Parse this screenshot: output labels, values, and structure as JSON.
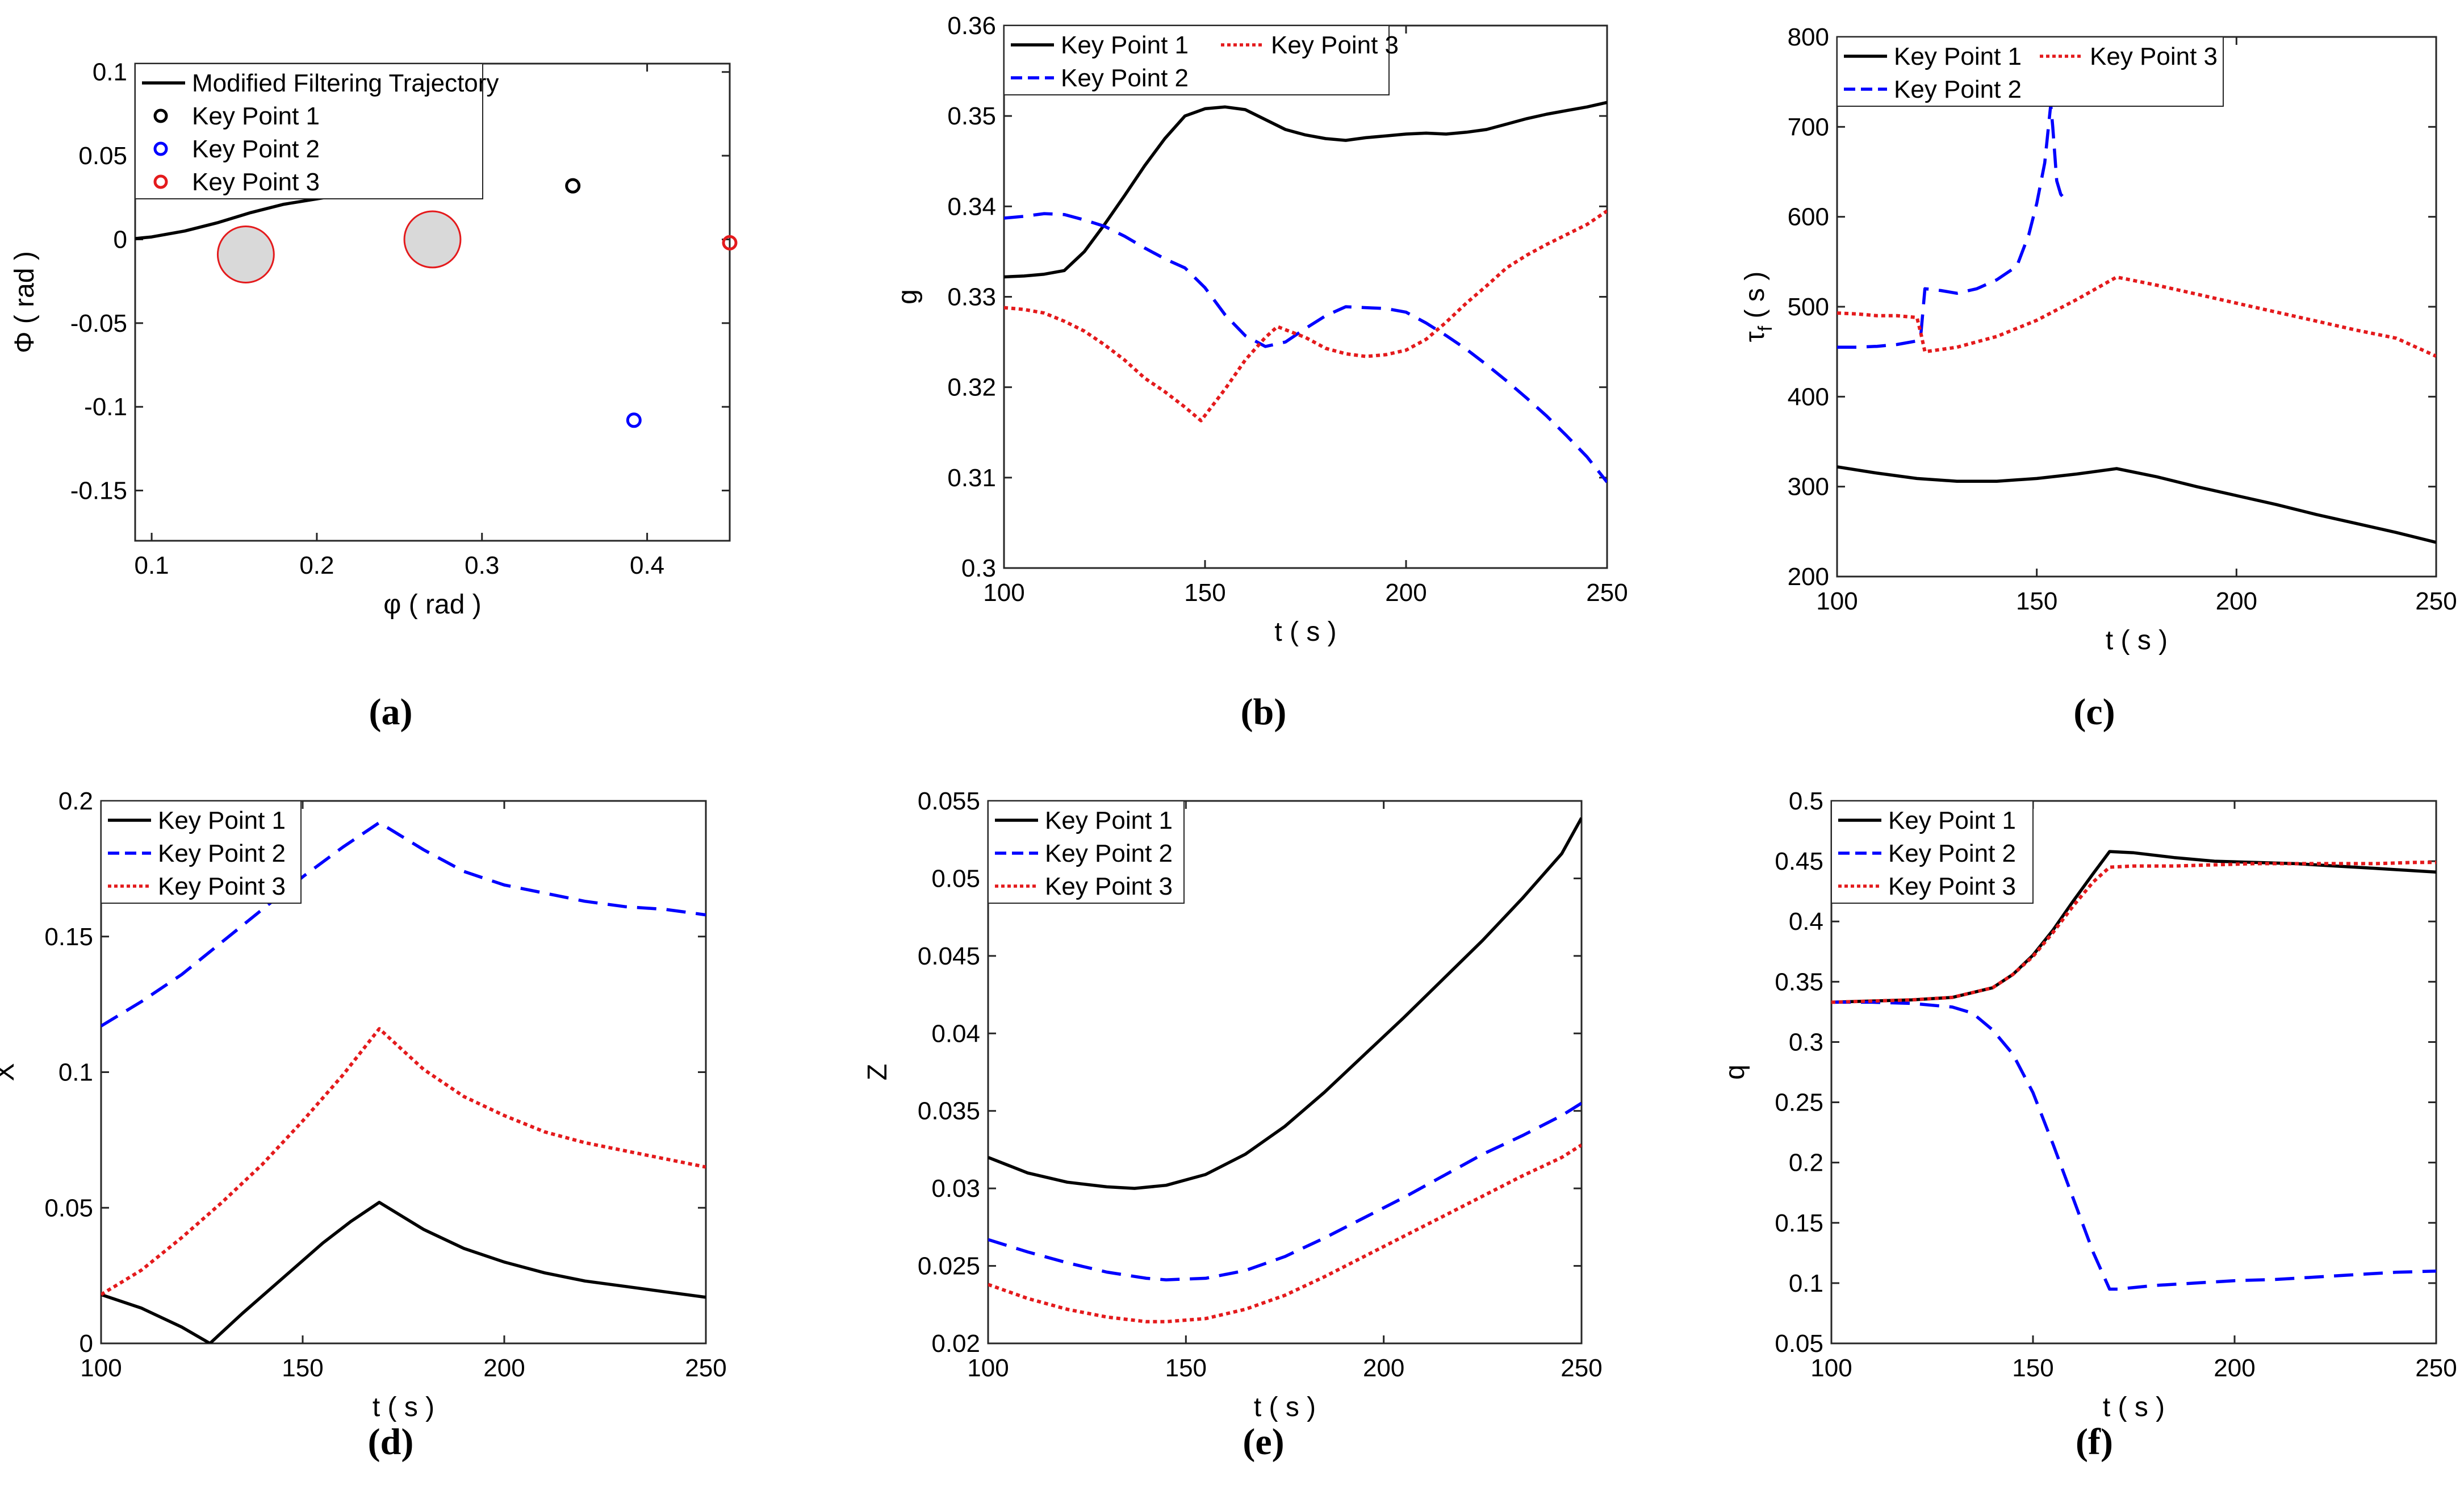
{
  "chart_data": [
    {
      "id": "a",
      "type": "line+scatter",
      "caption": "(a)",
      "xlabel": "φ ( rad )",
      "ylabel": "Φ ( rad )",
      "xlim": [
        0.09,
        0.45
      ],
      "ylim": [
        -0.18,
        0.105
      ],
      "xticks": [
        0.1,
        0.2,
        0.3,
        0.4
      ],
      "xtick_labels": [
        "0.1",
        "0.2",
        "0.3",
        "0.4"
      ],
      "yticks": [
        0.1,
        0.05,
        0,
        -0.05,
        -0.1,
        -0.15
      ],
      "ytick_labels": [
        "0.1",
        "0.05",
        "0",
        "-0.05",
        "-0.1",
        "-0.15"
      ],
      "legend": [
        "Modified Filtering Trajectory",
        "Key Point 1",
        "Key Point 2",
        "Key Point 3"
      ],
      "series": [
        {
          "name": "Modified Filtering Trajectory",
          "color": "#000000",
          "style": "solid",
          "x": [
            0.09,
            0.1,
            0.12,
            0.14,
            0.16,
            0.18,
            0.205
          ],
          "y": [
            0.0005,
            0.0015,
            0.005,
            0.01,
            0.016,
            0.021,
            0.025
          ]
        },
        {
          "name": "Key Point 1",
          "color": "#000000",
          "style": "marker",
          "x": [
            0.355
          ],
          "y": [
            0.032
          ]
        },
        {
          "name": "Key Point 2",
          "color": "#0000ff",
          "style": "marker",
          "x": [
            0.392
          ],
          "y": [
            -0.108
          ]
        },
        {
          "name": "Key Point 3",
          "color": "#e41a1c",
          "style": "marker",
          "x": [
            0.45
          ],
          "y": [
            -0.002
          ]
        }
      ],
      "obstacles": [
        {
          "x": 0.157,
          "y": -0.009,
          "r": 0.017
        },
        {
          "x": 0.27,
          "y": 0.0,
          "r": 0.017
        }
      ]
    },
    {
      "id": "b",
      "type": "line",
      "caption": "(b)",
      "xlabel": "t ( s )",
      "ylabel": "g",
      "xlim": [
        100,
        250
      ],
      "ylim": [
        0.3,
        0.36
      ],
      "xticks": [
        100,
        150,
        200,
        250
      ],
      "xtick_labels": [
        "100",
        "150",
        "200",
        "250"
      ],
      "yticks": [
        0.3,
        0.31,
        0.32,
        0.33,
        0.34,
        0.35,
        0.36
      ],
      "ytick_labels": [
        "0.3",
        "0.31",
        "0.32",
        "0.33",
        "0.34",
        "0.35",
        "0.36"
      ],
      "legend": [
        "Key Point 1",
        "Key Point 3",
        "Key Point 2"
      ],
      "series": [
        {
          "name": "Key Point 1",
          "color": "#000000",
          "style": "solid",
          "x": [
            100,
            105,
            110,
            115,
            120,
            125,
            130,
            135,
            140,
            145,
            150,
            155,
            160,
            165,
            170,
            175,
            180,
            185,
            190,
            195,
            200,
            205,
            210,
            215,
            220,
            225,
            230,
            235,
            240,
            245,
            250
          ],
          "y": [
            0.3322,
            0.3323,
            0.3325,
            0.3329,
            0.335,
            0.338,
            0.3412,
            0.3445,
            0.3475,
            0.35,
            0.3508,
            0.351,
            0.3507,
            0.3496,
            0.3485,
            0.3479,
            0.3475,
            0.3473,
            0.3476,
            0.3478,
            0.348,
            0.3481,
            0.348,
            0.3482,
            0.3485,
            0.3491,
            0.3497,
            0.3502,
            0.3506,
            0.351,
            0.3515
          ]
        },
        {
          "name": "Key Point 2",
          "color": "#0000ff",
          "style": "dashed",
          "x": [
            100,
            105,
            110,
            115,
            120,
            125,
            130,
            135,
            140,
            145,
            150,
            155,
            160,
            165,
            170,
            175,
            180,
            185,
            190,
            195,
            200,
            205,
            210,
            215,
            220,
            225,
            230,
            235,
            240,
            245,
            250
          ],
          "y": [
            0.3387,
            0.3389,
            0.3392,
            0.3391,
            0.3385,
            0.3378,
            0.3367,
            0.3354,
            0.3342,
            0.3332,
            0.331,
            0.328,
            0.3257,
            0.3245,
            0.325,
            0.3265,
            0.3279,
            0.3289,
            0.3288,
            0.3287,
            0.3283,
            0.3271,
            0.3257,
            0.3242,
            0.3225,
            0.3207,
            0.3188,
            0.3168,
            0.3146,
            0.3123,
            0.3095
          ]
        },
        {
          "name": "Key Point 3",
          "color": "#e41a1c",
          "style": "dotted",
          "x": [
            100,
            105,
            110,
            115,
            120,
            125,
            130,
            135,
            140,
            145,
            149,
            155,
            160,
            165,
            168,
            175,
            180,
            185,
            190,
            195,
            200,
            205,
            210,
            215,
            220,
            225,
            230,
            235,
            240,
            245,
            250
          ],
          "y": [
            0.3288,
            0.3286,
            0.3282,
            0.3273,
            0.3262,
            0.3247,
            0.323,
            0.321,
            0.3195,
            0.3178,
            0.3163,
            0.3198,
            0.323,
            0.3255,
            0.3267,
            0.3255,
            0.3243,
            0.3237,
            0.3234,
            0.3236,
            0.3241,
            0.3253,
            0.3272,
            0.3293,
            0.3312,
            0.3332,
            0.3346,
            0.3358,
            0.3369,
            0.338,
            0.3395
          ]
        }
      ]
    },
    {
      "id": "c",
      "type": "line",
      "caption": "(c)",
      "xlabel": "t ( s )",
      "ylabel": "τ",
      "ylabel_sub": "f",
      "ylabel_unit": " ( s )",
      "xlim": [
        100,
        250
      ],
      "ylim": [
        200,
        800
      ],
      "xticks": [
        100,
        150,
        200,
        250
      ],
      "xtick_labels": [
        "100",
        "150",
        "200",
        "250"
      ],
      "yticks": [
        200,
        300,
        400,
        500,
        600,
        700,
        800
      ],
      "ytick_labels": [
        "200",
        "300",
        "400",
        "500",
        "600",
        "700",
        "800"
      ],
      "legend": [
        "Key Point 1",
        "Key Point 3",
        "Key Point 2"
      ],
      "series": [
        {
          "name": "Key Point 1",
          "color": "#000000",
          "style": "solid",
          "x": [
            100,
            110,
            120,
            130,
            140,
            150,
            160,
            170,
            180,
            190,
            200,
            210,
            220,
            230,
            240,
            250
          ],
          "y": [
            322,
            315,
            309,
            306,
            306,
            309,
            314,
            320,
            311,
            300,
            290,
            280,
            269,
            259,
            249,
            238
          ]
        },
        {
          "name": "Key Point 2",
          "color": "#0000ff",
          "style": "dashed",
          "x": [
            100,
            105,
            110,
            115,
            120,
            121,
            122,
            126,
            130,
            135,
            140,
            145,
            148,
            150,
            152,
            153.5,
            154,
            155,
            156,
            157
          ],
          "y": [
            455,
            455,
            456,
            458,
            462,
            470,
            520,
            518,
            515,
            520,
            530,
            545,
            580,
            615,
            660,
            725,
            700,
            640,
            625,
            620
          ]
        },
        {
          "name": "Key Point 3",
          "color": "#e41a1c",
          "style": "dotted",
          "x": [
            100,
            105,
            110,
            115,
            120,
            121,
            122,
            130,
            140,
            150,
            160,
            170,
            180,
            190,
            200,
            210,
            220,
            230,
            240,
            250
          ],
          "y": [
            493,
            492,
            490,
            490,
            488,
            470,
            450,
            455,
            467,
            485,
            508,
            533,
            524,
            514,
            504,
            494,
            484,
            474,
            465,
            445
          ]
        }
      ]
    },
    {
      "id": "d",
      "type": "line",
      "caption": "(d)",
      "xlabel": "t ( s )",
      "ylabel": "X",
      "xlim": [
        100,
        250
      ],
      "ylim": [
        0,
        0.2
      ],
      "xticks": [
        100,
        150,
        200,
        250
      ],
      "xtick_labels": [
        "100",
        "150",
        "200",
        "250"
      ],
      "yticks": [
        0,
        0.05,
        0.1,
        0.15,
        0.2
      ],
      "ytick_labels": [
        "0",
        "0.05",
        "0.1",
        "0.15",
        "0.2"
      ],
      "legend": [
        "Key Point 1",
        "Key Point 2",
        "Key Point 3"
      ],
      "series": [
        {
          "name": "Key Point 1",
          "color": "#000000",
          "style": "solid",
          "x": [
            100,
            110,
            120,
            127,
            135,
            145,
            155,
            162,
            169,
            180,
            190,
            200,
            210,
            220,
            230,
            240,
            250
          ],
          "y": [
            0.018,
            0.013,
            0.006,
            0.0,
            0.011,
            0.024,
            0.037,
            0.045,
            0.052,
            0.042,
            0.035,
            0.03,
            0.026,
            0.023,
            0.021,
            0.019,
            0.017
          ]
        },
        {
          "name": "Key Point 2",
          "color": "#0000ff",
          "style": "dashed",
          "x": [
            100,
            110,
            120,
            130,
            140,
            150,
            160,
            169,
            180,
            190,
            200,
            210,
            220,
            230,
            240,
            250
          ],
          "y": [
            0.117,
            0.126,
            0.136,
            0.148,
            0.16,
            0.172,
            0.183,
            0.192,
            0.182,
            0.174,
            0.169,
            0.166,
            0.163,
            0.161,
            0.16,
            0.158
          ]
        },
        {
          "name": "Key Point 3",
          "color": "#e41a1c",
          "style": "dotted",
          "x": [
            100,
            110,
            120,
            130,
            140,
            150,
            160,
            169,
            180,
            190,
            200,
            210,
            220,
            230,
            240,
            250
          ],
          "y": [
            0.018,
            0.027,
            0.039,
            0.052,
            0.066,
            0.082,
            0.099,
            0.116,
            0.101,
            0.091,
            0.084,
            0.078,
            0.074,
            0.071,
            0.068,
            0.065
          ]
        }
      ]
    },
    {
      "id": "e",
      "type": "line",
      "caption": "(e)",
      "xlabel": "t ( s )",
      "ylabel": "Z",
      "xlim": [
        100,
        250
      ],
      "ylim": [
        0.02,
        0.055
      ],
      "xticks": [
        100,
        150,
        200,
        250
      ],
      "xtick_labels": [
        "100",
        "150",
        "200",
        "250"
      ],
      "yticks": [
        0.02,
        0.025,
        0.03,
        0.035,
        0.04,
        0.045,
        0.05,
        0.055
      ],
      "ytick_labels": [
        "0.02",
        "0.025",
        "0.03",
        "0.035",
        "0.04",
        "0.045",
        "0.05",
        "0.055"
      ],
      "legend": [
        "Key Point 1",
        "Key Point 2",
        "Key Point 3"
      ],
      "series": [
        {
          "name": "Key Point 1",
          "color": "#000000",
          "style": "solid",
          "x": [
            100,
            110,
            120,
            130,
            137,
            145,
            155,
            165,
            175,
            185,
            195,
            205,
            215,
            225,
            235,
            245,
            250
          ],
          "y": [
            0.032,
            0.031,
            0.0304,
            0.0301,
            0.03,
            0.0302,
            0.0309,
            0.0322,
            0.034,
            0.0362,
            0.0386,
            0.041,
            0.0435,
            0.046,
            0.0487,
            0.0516,
            0.0539
          ]
        },
        {
          "name": "Key Point 2",
          "color": "#0000ff",
          "style": "dashed",
          "x": [
            100,
            110,
            120,
            130,
            140,
            145,
            155,
            165,
            175,
            185,
            195,
            205,
            215,
            225,
            235,
            245,
            250
          ],
          "y": [
            0.0267,
            0.0259,
            0.0252,
            0.0246,
            0.0242,
            0.0241,
            0.0242,
            0.0247,
            0.0256,
            0.0268,
            0.0281,
            0.0294,
            0.0308,
            0.0322,
            0.0334,
            0.0347,
            0.0355
          ]
        },
        {
          "name": "Key Point 3",
          "color": "#e41a1c",
          "style": "dotted",
          "x": [
            100,
            110,
            120,
            130,
            140,
            145,
            155,
            165,
            175,
            185,
            195,
            205,
            215,
            225,
            235,
            245,
            250
          ],
          "y": [
            0.0238,
            0.0229,
            0.0222,
            0.0217,
            0.0214,
            0.0214,
            0.0216,
            0.0222,
            0.0231,
            0.0243,
            0.0256,
            0.0269,
            0.0282,
            0.0295,
            0.0308,
            0.032,
            0.0328
          ]
        }
      ]
    },
    {
      "id": "f",
      "type": "line",
      "caption": "(f)",
      "xlabel": "t ( s )",
      "ylabel": "q",
      "xlim": [
        100,
        250
      ],
      "ylim": [
        0.05,
        0.5
      ],
      "xticks": [
        100,
        150,
        200,
        250
      ],
      "xtick_labels": [
        "100",
        "150",
        "200",
        "250"
      ],
      "yticks": [
        0.05,
        0.1,
        0.15,
        0.2,
        0.25,
        0.3,
        0.35,
        0.4,
        0.45,
        0.5
      ],
      "ytick_labels": [
        "0.05",
        "0.1",
        "0.15",
        "0.2",
        "0.25",
        "0.3",
        "0.35",
        "0.4",
        "0.45",
        "0.5"
      ],
      "legend": [
        "Key Point 1",
        "Key Point 2",
        "Key  Point 3"
      ],
      "series": [
        {
          "name": "Key Point 1",
          "color": "#000000",
          "style": "solid",
          "x": [
            100,
            110,
            120,
            130,
            140,
            145,
            150,
            155,
            160,
            165,
            169,
            175,
            185,
            195,
            205,
            215,
            225,
            235,
            245,
            250
          ],
          "y": [
            0.333,
            0.334,
            0.335,
            0.337,
            0.345,
            0.356,
            0.372,
            0.393,
            0.417,
            0.44,
            0.458,
            0.457,
            0.453,
            0.45,
            0.449,
            0.448,
            0.446,
            0.444,
            0.442,
            0.441
          ]
        },
        {
          "name": "Key Point 2",
          "color": "#0000ff",
          "style": "dashed",
          "x": [
            100,
            110,
            120,
            130,
            135,
            140,
            145,
            150,
            155,
            160,
            165,
            169,
            171,
            180,
            190,
            200,
            210,
            220,
            230,
            240,
            250
          ],
          "y": [
            0.333,
            0.333,
            0.332,
            0.329,
            0.324,
            0.31,
            0.29,
            0.258,
            0.215,
            0.17,
            0.125,
            0.095,
            0.095,
            0.098,
            0.1,
            0.102,
            0.103,
            0.105,
            0.107,
            0.109,
            0.11
          ]
        },
        {
          "name": "Key  Point 3",
          "color": "#e41a1c",
          "style": "dotted",
          "x": [
            100,
            110,
            120,
            130,
            140,
            145,
            150,
            155,
            160,
            165,
            169,
            175,
            185,
            195,
            205,
            215,
            225,
            235,
            245,
            250
          ],
          "y": [
            0.333,
            0.334,
            0.335,
            0.337,
            0.345,
            0.356,
            0.371,
            0.391,
            0.413,
            0.433,
            0.445,
            0.446,
            0.446,
            0.447,
            0.448,
            0.448,
            0.448,
            0.448,
            0.449,
            0.449
          ]
        }
      ]
    }
  ]
}
